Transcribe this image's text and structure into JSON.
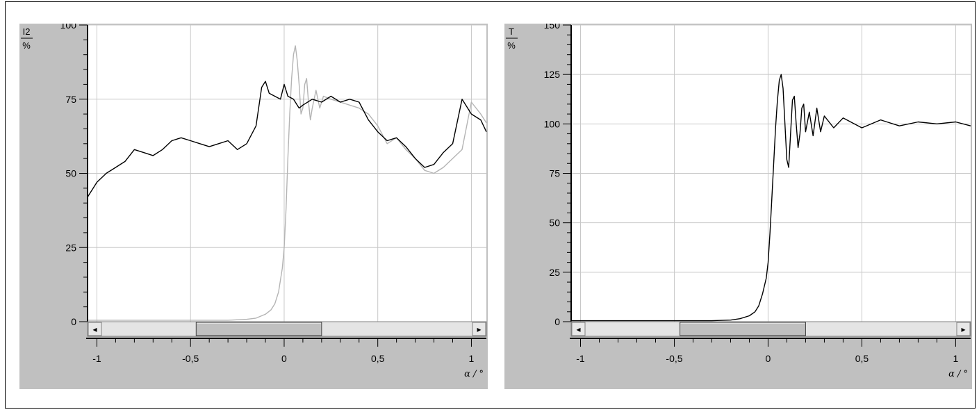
{
  "chart_data": [
    {
      "type": "line",
      "ylabel": "I2",
      "yunit": "%",
      "xlabel": "α / °",
      "xlim": [
        -1.05,
        1.08
      ],
      "ylim": [
        0,
        100
      ],
      "x_ticks": [
        -1,
        -0.5,
        0,
        0.5,
        1
      ],
      "x_tick_labels": [
        "-1",
        "-0,5",
        "0",
        "0,5",
        "1"
      ],
      "y_ticks": [
        0,
        25,
        50,
        75,
        100
      ],
      "y_tick_labels": [
        "0",
        "25",
        "50",
        "75",
        "100"
      ],
      "grid": true,
      "scrollbar": {
        "thumb_start": -0.47,
        "thumb_end": 0.2
      },
      "series": [
        {
          "color": "#000000",
          "x": [
            -1.05,
            -1.0,
            -0.95,
            -0.9,
            -0.85,
            -0.8,
            -0.75,
            -0.7,
            -0.65,
            -0.6,
            -0.55,
            -0.5,
            -0.45,
            -0.4,
            -0.35,
            -0.3,
            -0.25,
            -0.2,
            -0.15,
            -0.12,
            -0.1,
            -0.08,
            -0.05,
            -0.02,
            0.0,
            0.02,
            0.05,
            0.08,
            0.1,
            0.15,
            0.2,
            0.25,
            0.3,
            0.35,
            0.4,
            0.45,
            0.5,
            0.55,
            0.6,
            0.65,
            0.7,
            0.75,
            0.8,
            0.85,
            0.9,
            0.95,
            1.0,
            1.05,
            1.08
          ],
          "y": [
            42,
            47,
            50,
            52,
            54,
            58,
            57,
            56,
            58,
            61,
            62,
            61,
            60,
            59,
            60,
            61,
            58,
            60,
            66,
            79,
            81,
            77,
            76,
            75,
            80,
            76,
            75,
            72,
            73,
            75,
            74,
            76,
            74,
            75,
            74,
            68,
            64,
            61,
            62,
            59,
            55,
            52,
            53,
            57,
            60,
            75,
            70,
            68,
            64
          ]
        },
        {
          "color": "#b4b4b4",
          "x": [
            -1.05,
            -0.8,
            -0.5,
            -0.3,
            -0.2,
            -0.15,
            -0.1,
            -0.07,
            -0.05,
            -0.03,
            -0.01,
            0.0,
            0.01,
            0.02,
            0.03,
            0.04,
            0.05,
            0.06,
            0.07,
            0.08,
            0.09,
            0.1,
            0.11,
            0.12,
            0.13,
            0.14,
            0.15,
            0.17,
            0.19,
            0.21,
            0.25,
            0.3,
            0.35,
            0.4,
            0.45,
            0.5,
            0.55,
            0.6,
            0.65,
            0.7,
            0.75,
            0.8,
            0.85,
            0.9,
            0.95,
            1.0,
            1.05,
            1.08
          ],
          "y": [
            0.5,
            0.5,
            0.5,
            0.5,
            0.8,
            1.2,
            2.5,
            4,
            6,
            10,
            18,
            25,
            38,
            55,
            70,
            82,
            90,
            93,
            88,
            80,
            70,
            72,
            80,
            82,
            74,
            68,
            72,
            78,
            72,
            76,
            75,
            74,
            73,
            72,
            70,
            66,
            60,
            62,
            58,
            55,
            51,
            50,
            52,
            55,
            58,
            74,
            70,
            67
          ]
        }
      ]
    },
    {
      "type": "line",
      "ylabel": "T",
      "yunit": "%",
      "xlabel": "α / °",
      "xlim": [
        -1.05,
        1.08
      ],
      "ylim": [
        0,
        150
      ],
      "x_ticks": [
        -1,
        -0.5,
        0,
        0.5,
        1
      ],
      "x_tick_labels": [
        "-1",
        "-0,5",
        "0",
        "0,5",
        "1"
      ],
      "y_ticks": [
        0,
        25,
        50,
        75,
        100,
        125,
        150
      ],
      "y_tick_labels": [
        "0",
        "25",
        "50",
        "75",
        "100",
        "125",
        "150"
      ],
      "grid": true,
      "scrollbar": {
        "thumb_start": -0.47,
        "thumb_end": 0.2
      },
      "series": [
        {
          "color": "#000000",
          "x": [
            -1.05,
            -0.8,
            -0.5,
            -0.3,
            -0.2,
            -0.15,
            -0.1,
            -0.07,
            -0.05,
            -0.03,
            -0.01,
            0.0,
            0.01,
            0.02,
            0.03,
            0.04,
            0.05,
            0.06,
            0.07,
            0.08,
            0.09,
            0.1,
            0.11,
            0.12,
            0.13,
            0.14,
            0.15,
            0.16,
            0.17,
            0.18,
            0.19,
            0.2,
            0.22,
            0.24,
            0.26,
            0.28,
            0.3,
            0.35,
            0.4,
            0.5,
            0.6,
            0.7,
            0.8,
            0.9,
            1.0,
            1.08
          ],
          "y": [
            0.5,
            0.5,
            0.5,
            0.5,
            0.8,
            1.5,
            3,
            5,
            8,
            14,
            22,
            30,
            45,
            62,
            80,
            98,
            112,
            122,
            125,
            118,
            100,
            82,
            78,
            95,
            112,
            114,
            100,
            88,
            95,
            108,
            110,
            96,
            106,
            94,
            108,
            96,
            104,
            98,
            103,
            98,
            102,
            99,
            101,
            100,
            101,
            99
          ]
        }
      ]
    }
  ]
}
